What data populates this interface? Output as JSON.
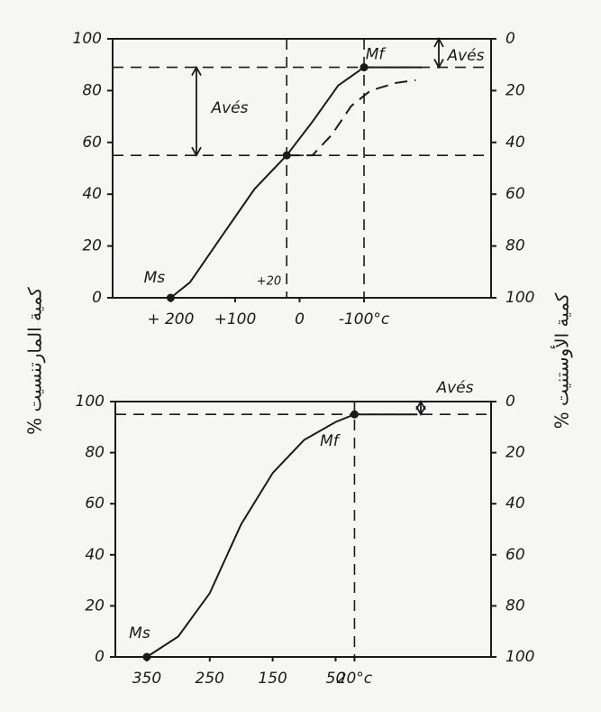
{
  "chart_data": [
    {
      "type": "line",
      "y_label": "% كمية المارتنسيت",
      "y2_label": "% كمية الأوستنيت",
      "xlim": [
        290,
        -297
      ],
      "xticks": [
        {
          "value": 200,
          "label": "+ 200"
        },
        {
          "value": 100,
          "label": "+100"
        },
        0,
        {
          "value": -100,
          "label": "-100°c"
        }
      ],
      "ylim": [
        0,
        100
      ],
      "yticks": [
        0,
        20,
        40,
        60,
        80,
        100
      ],
      "y2lim": [
        100,
        0
      ],
      "y2ticks": [
        0,
        20,
        40,
        60,
        80,
        100
      ],
      "series": [
        {
          "color": "#1a1a1a",
          "dashed": false,
          "x": [
            200,
            170,
            120,
            70,
            20,
            -20,
            -60,
            -100,
            -190
          ],
          "values": [
            0,
            6,
            24,
            42,
            55,
            68,
            82,
            89,
            89
          ]
        },
        {
          "color": "#1a1a1a",
          "dashed": true,
          "x": [
            20,
            -20,
            -50,
            -80,
            -110,
            -150,
            -180
          ],
          "values": [
            55,
            55,
            63,
            74,
            80,
            83,
            84
          ]
        }
      ],
      "hlines": [
        89,
        55
      ],
      "vlines": [
        20,
        -100
      ],
      "vline_labels": [
        "+20",
        null
      ],
      "markers": [
        {
          "label": "Ms",
          "x": 200,
          "y": 0
        },
        {
          "label": null,
          "x": 20,
          "y": 55
        },
        {
          "label": "Mf",
          "x": -100,
          "y": 89
        }
      ],
      "annotations": [
        {
          "text": "Avés",
          "y": [
            55,
            89
          ]
        },
        {
          "text": "Avés",
          "y": [
            89,
            100
          ]
        }
      ]
    },
    {
      "type": "line",
      "xlim": [
        400,
        -197
      ],
      "xticks": [
        350,
        250,
        150,
        50,
        {
          "value": 20,
          "label": "20°c"
        }
      ],
      "ylim": [
        0,
        100
      ],
      "yticks": [
        0,
        20,
        40,
        60,
        80,
        100
      ],
      "y2lim": [
        100,
        0
      ],
      "y2ticks": [
        0,
        20,
        40,
        60,
        80,
        100
      ],
      "series": [
        {
          "color": "#1a1a1a",
          "dashed": false,
          "x": [
            350,
            300,
            250,
            200,
            150,
            100,
            50,
            20,
            -80
          ],
          "values": [
            0,
            8,
            25,
            52,
            72,
            85,
            92,
            95,
            95
          ]
        }
      ],
      "hlines": [
        95
      ],
      "vlines": [
        20
      ],
      "vline_labels": [
        null
      ],
      "markers": [
        {
          "label": "Ms",
          "x": 350,
          "y": 0
        },
        {
          "label": "Mf",
          "x": 20,
          "y": 95
        }
      ],
      "annotations": [
        {
          "text": "Avés",
          "y": [
            95,
            100
          ]
        }
      ]
    }
  ]
}
